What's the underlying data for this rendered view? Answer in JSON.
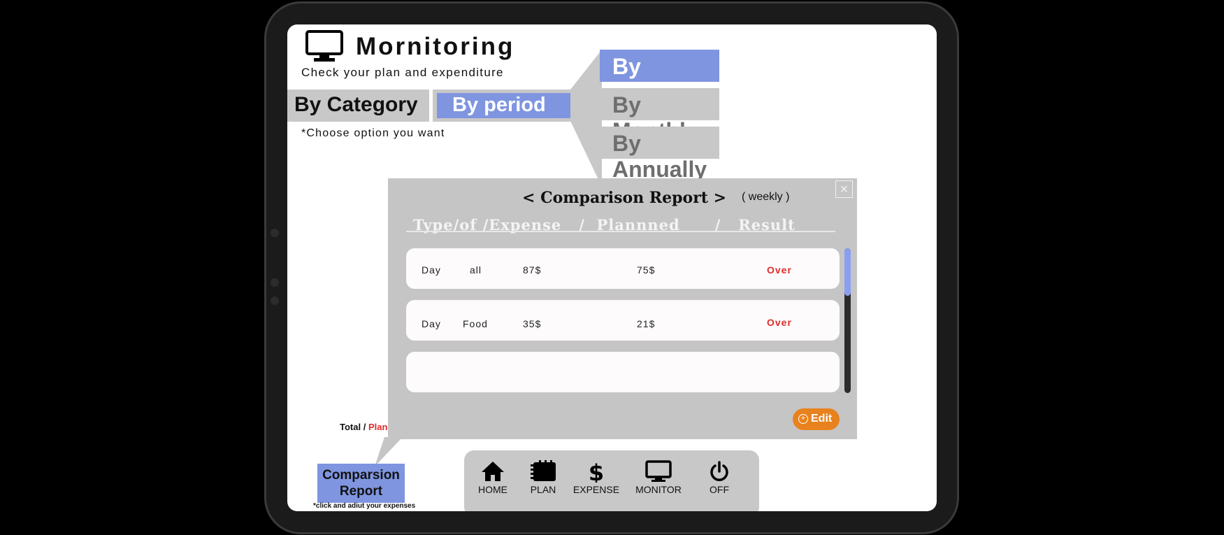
{
  "app": {
    "title": "Mornitoring",
    "subtitle": "Check your plan and expenditure",
    "hint": "*Choose option you want"
  },
  "tabs": {
    "category": "By Category",
    "period": "By period"
  },
  "period_options": [
    {
      "label": "By Weekly",
      "active": true
    },
    {
      "label": "By Monthly",
      "active": false
    },
    {
      "label": "By Annually",
      "active": false
    }
  ],
  "popup": {
    "title": "< Comparison Report >",
    "period": "( weekly )",
    "close": "×",
    "column_header": "Type/of /Expense   /  Plannned      /   Result",
    "rows": [
      {
        "period": "Day",
        "type": "all",
        "expense": "87$",
        "planned": "75$",
        "result": "Over"
      },
      {
        "period": "Day",
        "type": "Food",
        "expense": "35$",
        "planned": "21$",
        "result": "Over"
      }
    ],
    "edit_label": "Edit"
  },
  "total": {
    "prefix": "Total / ",
    "plan": "Plan"
  },
  "report_button": {
    "label": "Comparsion Report",
    "note": "*click and adiut your expenses"
  },
  "nav": [
    {
      "label": "HOME",
      "icon": "home-icon"
    },
    {
      "label": "PLAN",
      "icon": "notebook-icon"
    },
    {
      "label": "EXPENSE",
      "icon": "dollar-icon"
    },
    {
      "label": "MONITOR",
      "icon": "monitor-icon"
    },
    {
      "label": "OFF",
      "icon": "power-icon"
    }
  ],
  "colors": {
    "accent": "#7f95e0",
    "panel": "#c8c8c8",
    "danger": "#e02b2b",
    "edit": "#e8821e"
  }
}
